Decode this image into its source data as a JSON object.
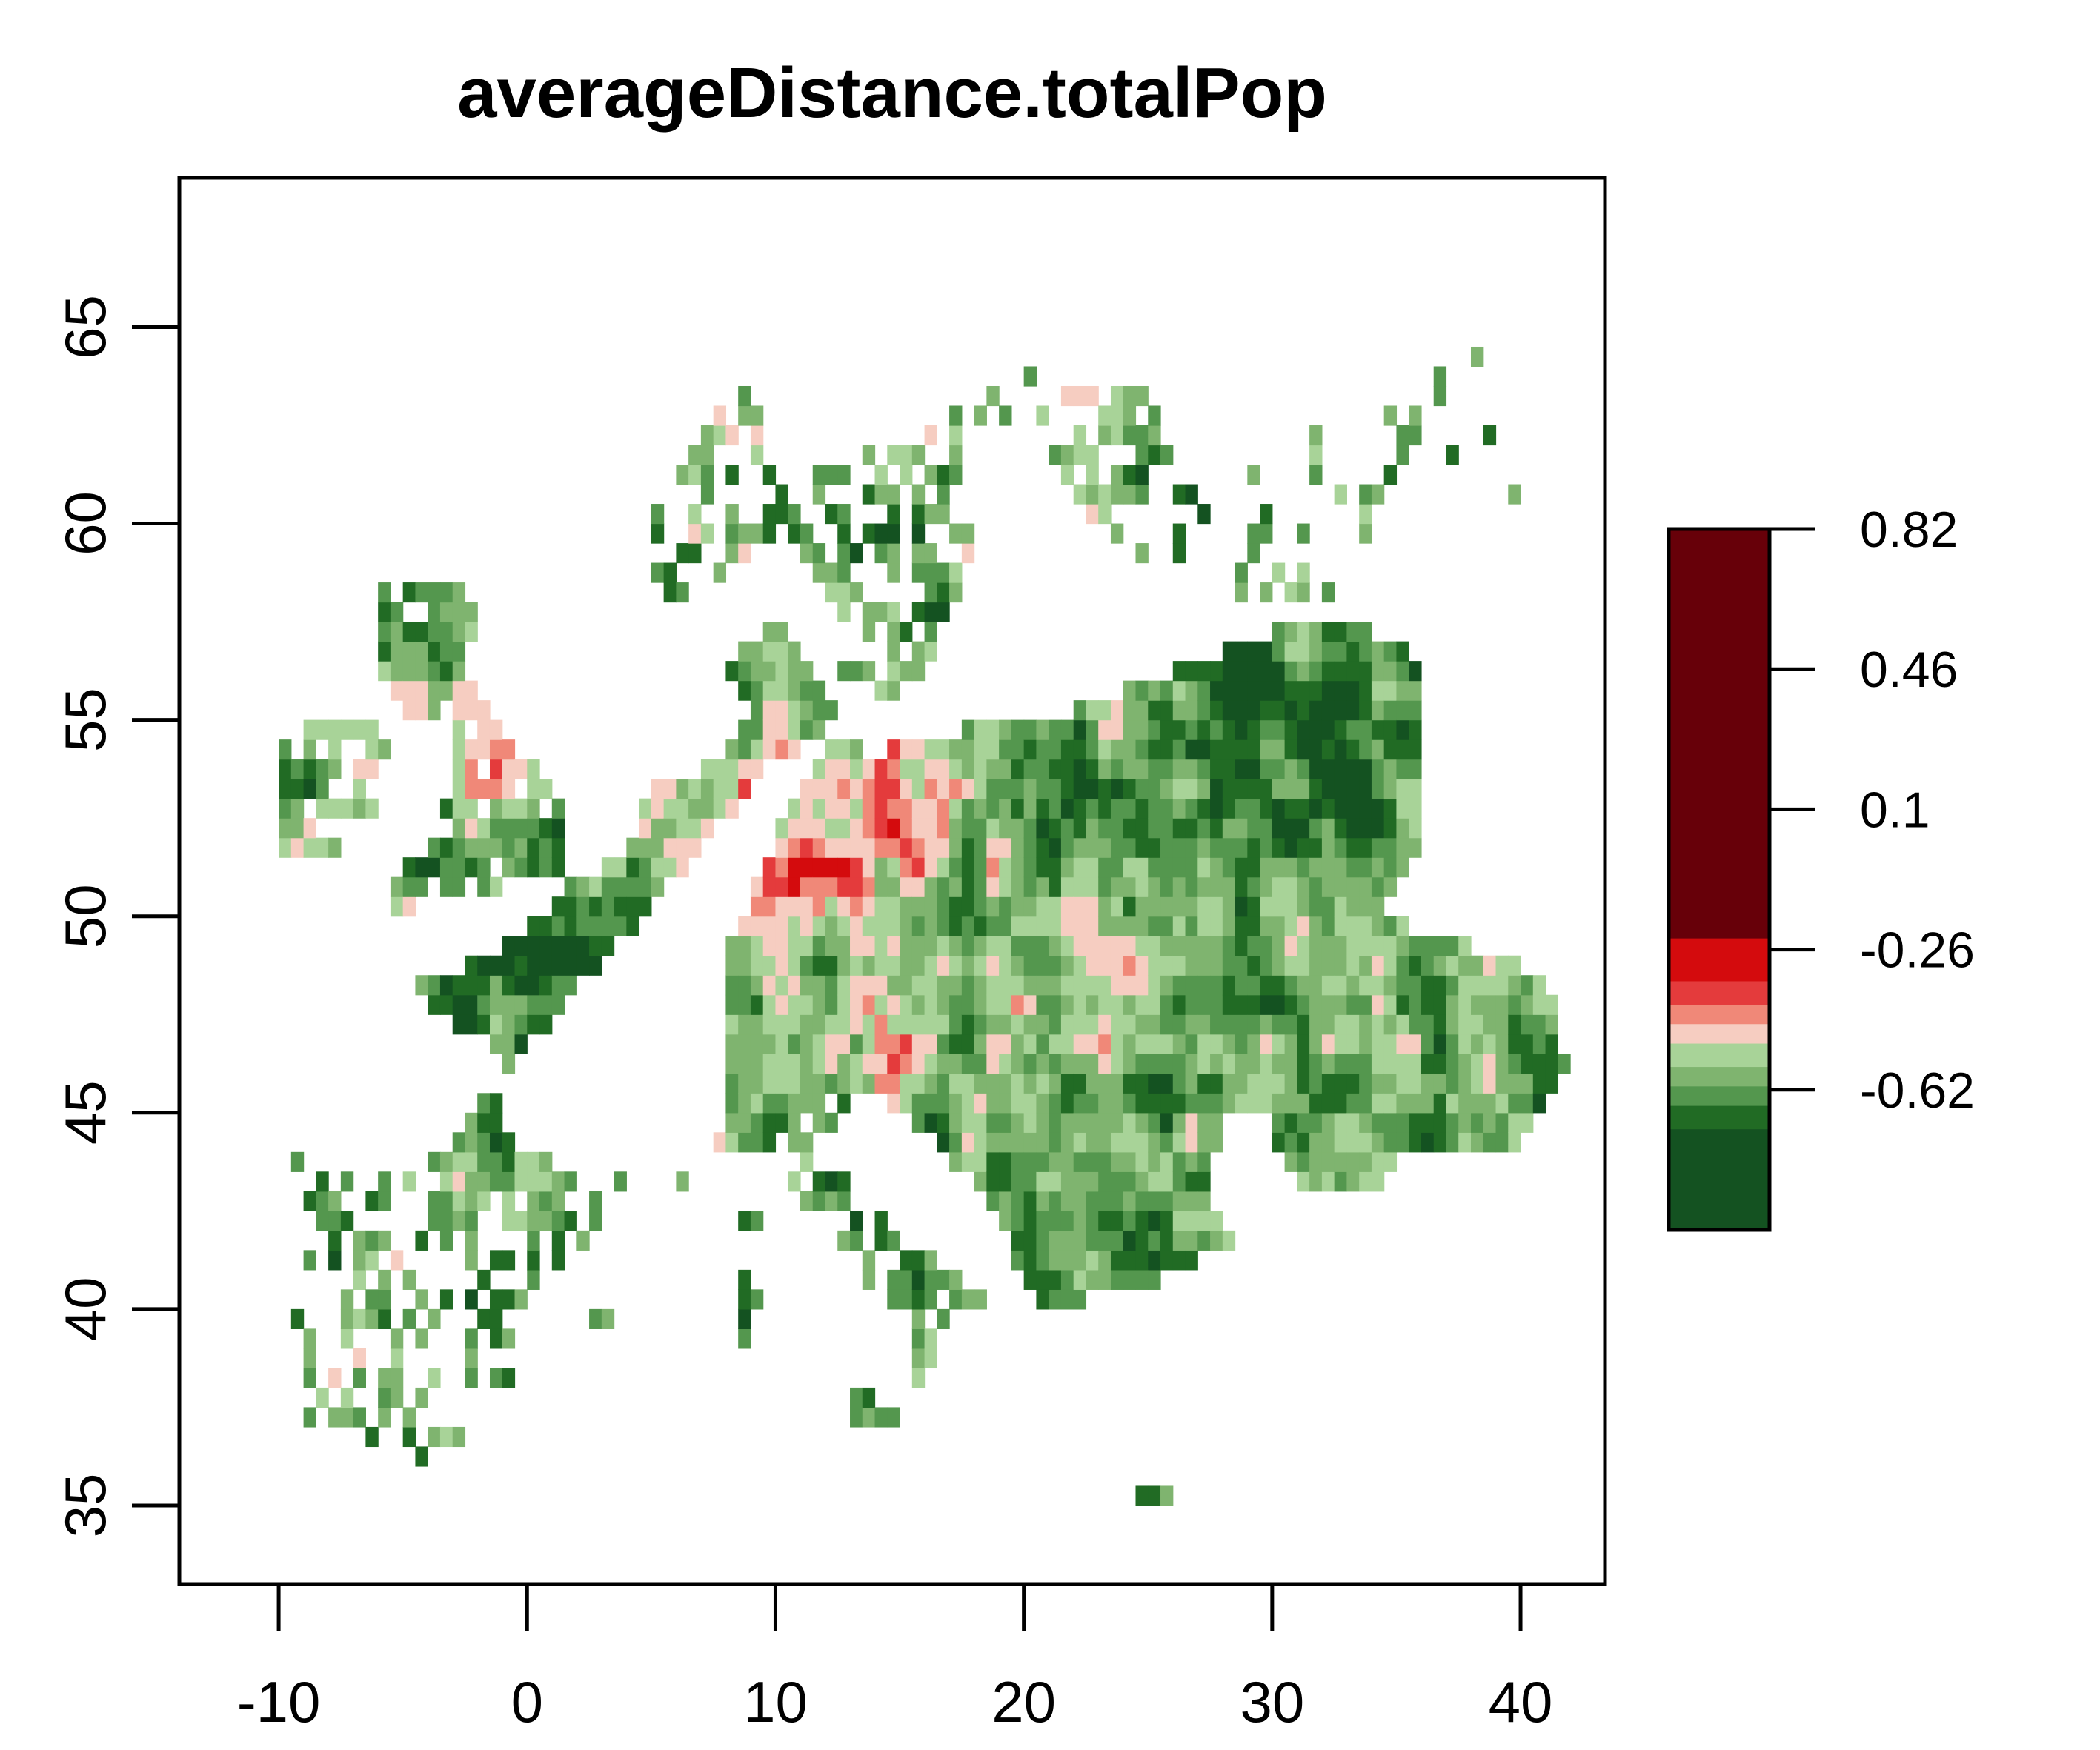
{
  "chart_data": {
    "type": "heatmap",
    "title": "averageDistance.totalPop",
    "xlabel": "",
    "ylabel": "",
    "xlim": [
      -14,
      43.4
    ],
    "ylim": [
      33,
      68.8
    ],
    "x_ticks": [
      -10,
      0,
      10,
      20,
      30,
      40
    ],
    "y_ticks": [
      35,
      40,
      45,
      50,
      55,
      60,
      65
    ],
    "legend": {
      "placement": "right",
      "range": [
        -0.98,
        0.82
      ],
      "tick_values": [
        0.82,
        0.46,
        0.1,
        -0.26,
        -0.62
      ],
      "tick_labels": [
        "0.82",
        "0.46",
        "0.1",
        "-0.26",
        "-0.62"
      ],
      "bands": [
        {
          "from": -0.98,
          "to": -0.72,
          "color": "#145221"
        },
        {
          "from": -0.72,
          "to": -0.66,
          "color": "#216b24"
        },
        {
          "from": -0.66,
          "to": -0.61,
          "color": "#54974e"
        },
        {
          "from": -0.61,
          "to": -0.56,
          "color": "#7fb46f"
        },
        {
          "from": -0.56,
          "to": -0.5,
          "color": "#a8d398"
        },
        {
          "from": -0.5,
          "to": -0.45,
          "color": "#f6cdc1"
        },
        {
          "from": -0.45,
          "to": -0.4,
          "color": "#f08878"
        },
        {
          "from": -0.4,
          "to": -0.34,
          "color": "#e43b3c"
        },
        {
          "from": -0.34,
          "to": -0.23,
          "color": "#d40b0d"
        },
        {
          "from": -0.23,
          "to": 0.82,
          "color": "#670009"
        }
      ]
    },
    "grid_cell_size_deg": 0.5
  }
}
